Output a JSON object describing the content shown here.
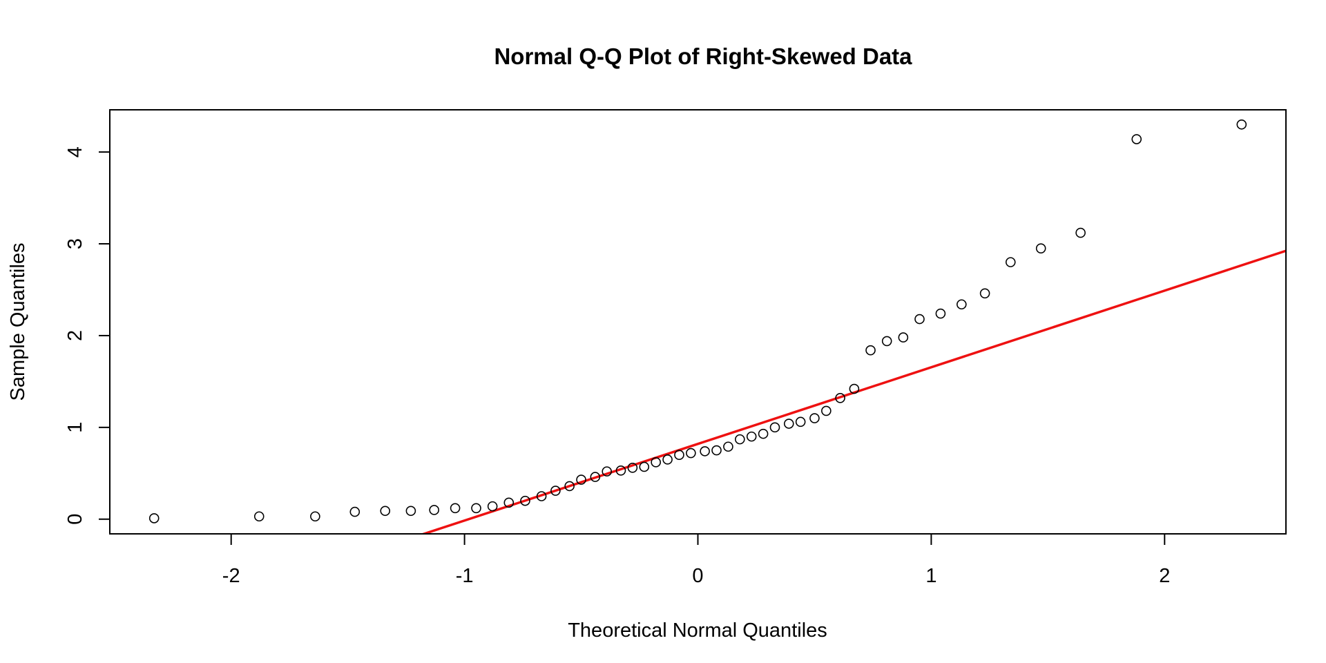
{
  "chart_data": {
    "type": "scatter",
    "title": "Normal Q-Q Plot of Right-Skewed Data",
    "xlabel": "Theoretical Normal Quantiles",
    "ylabel": "Sample Quantiles",
    "xlim": [
      -2.52,
      2.52
    ],
    "ylim": [
      -0.16,
      4.46
    ],
    "x_ticks": [
      -2,
      -1,
      0,
      1,
      2
    ],
    "x_tick_labels": [
      "-2",
      "-1",
      "0",
      "1",
      "2"
    ],
    "y_ticks": [
      0,
      1,
      2,
      3,
      4
    ],
    "y_tick_labels": [
      "0",
      "1",
      "2",
      "3",
      "4"
    ],
    "point_style": "open-circle",
    "points": [
      {
        "x": -2.33,
        "y": 0.01
      },
      {
        "x": -1.88,
        "y": 0.03
      },
      {
        "x": -1.64,
        "y": 0.03
      },
      {
        "x": -1.47,
        "y": 0.08
      },
      {
        "x": -1.34,
        "y": 0.09
      },
      {
        "x": -1.23,
        "y": 0.09
      },
      {
        "x": -1.13,
        "y": 0.1
      },
      {
        "x": -1.04,
        "y": 0.12
      },
      {
        "x": -0.95,
        "y": 0.12
      },
      {
        "x": -0.88,
        "y": 0.14
      },
      {
        "x": -0.81,
        "y": 0.18
      },
      {
        "x": -0.74,
        "y": 0.2
      },
      {
        "x": -0.67,
        "y": 0.25
      },
      {
        "x": -0.61,
        "y": 0.31
      },
      {
        "x": -0.55,
        "y": 0.36
      },
      {
        "x": -0.5,
        "y": 0.43
      },
      {
        "x": -0.44,
        "y": 0.46
      },
      {
        "x": -0.39,
        "y": 0.52
      },
      {
        "x": -0.33,
        "y": 0.53
      },
      {
        "x": -0.28,
        "y": 0.56
      },
      {
        "x": -0.23,
        "y": 0.57
      },
      {
        "x": -0.18,
        "y": 0.62
      },
      {
        "x": -0.13,
        "y": 0.65
      },
      {
        "x": -0.08,
        "y": 0.7
      },
      {
        "x": -0.03,
        "y": 0.72
      },
      {
        "x": 0.03,
        "y": 0.74
      },
      {
        "x": 0.08,
        "y": 0.75
      },
      {
        "x": 0.13,
        "y": 0.79
      },
      {
        "x": 0.18,
        "y": 0.87
      },
      {
        "x": 0.23,
        "y": 0.9
      },
      {
        "x": 0.28,
        "y": 0.93
      },
      {
        "x": 0.33,
        "y": 1.0
      },
      {
        "x": 0.39,
        "y": 1.04
      },
      {
        "x": 0.44,
        "y": 1.06
      },
      {
        "x": 0.5,
        "y": 1.1
      },
      {
        "x": 0.55,
        "y": 1.18
      },
      {
        "x": 0.61,
        "y": 1.32
      },
      {
        "x": 0.67,
        "y": 1.42
      },
      {
        "x": 0.74,
        "y": 1.84
      },
      {
        "x": 0.81,
        "y": 1.94
      },
      {
        "x": 0.88,
        "y": 1.98
      },
      {
        "x": 0.95,
        "y": 2.18
      },
      {
        "x": 1.04,
        "y": 2.24
      },
      {
        "x": 1.13,
        "y": 2.34
      },
      {
        "x": 1.23,
        "y": 2.46
      },
      {
        "x": 1.34,
        "y": 2.8
      },
      {
        "x": 1.47,
        "y": 2.95
      },
      {
        "x": 1.64,
        "y": 3.12
      },
      {
        "x": 1.88,
        "y": 4.14
      },
      {
        "x": 2.33,
        "y": 4.3
      }
    ],
    "reference_line": {
      "slope": 0.835,
      "intercept": 0.82,
      "color": "#ee1111"
    }
  }
}
